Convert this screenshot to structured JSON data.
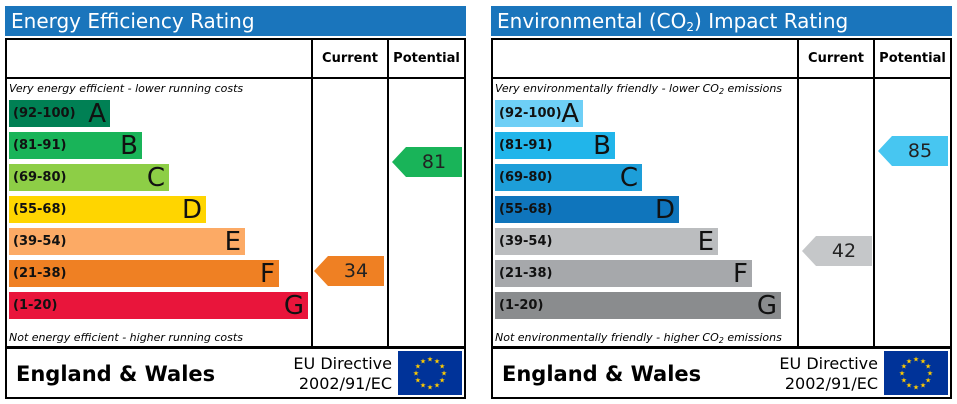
{
  "panels": [
    {
      "title": "Energy Efficiency Rating",
      "col_current": "Current",
      "col_potential": "Potential",
      "top_note": "Very energy efficient - lower running costs",
      "bottom_note": "Not energy efficient - higher running costs",
      "bands": [
        {
          "range": "(92-100)",
          "letter": "A",
          "color": "#008054"
        },
        {
          "range": "(81-91)",
          "letter": "B",
          "color": "#19b459"
        },
        {
          "range": "(69-80)",
          "letter": "C",
          "color": "#8dce46"
        },
        {
          "range": "(55-68)",
          "letter": "D",
          "color": "#ffd500"
        },
        {
          "range": "(39-54)",
          "letter": "E",
          "color": "#fcaa65"
        },
        {
          "range": "(21-38)",
          "letter": "F",
          "color": "#ef8023"
        },
        {
          "range": "(1-20)",
          "letter": "G",
          "color": "#e9153b"
        }
      ],
      "current": {
        "value": "34",
        "color": "#ef8023"
      },
      "potential": {
        "value": "81",
        "color": "#19b459"
      },
      "footer_country": "England & Wales",
      "footer_directive_1": "EU Directive",
      "footer_directive_2": "2002/91/EC"
    },
    {
      "title_prefix": "Environmental (CO",
      "title_sub": "2",
      "title_suffix": ") Impact Rating",
      "col_current": "Current",
      "col_potential": "Potential",
      "top_note_prefix": "Very environmentally friendly - lower CO",
      "top_note_sub": "2",
      "top_note_suffix": " emissions",
      "bottom_note_prefix": "Not environmentally friendly - higher CO",
      "bottom_note_sub": "2",
      "bottom_note_suffix": " emissions",
      "bands": [
        {
          "range": "(92-100)",
          "letter": "A",
          "color": "#6ecff6"
        },
        {
          "range": "(81-91)",
          "letter": "B",
          "color": "#21b5ea"
        },
        {
          "range": "(69-80)",
          "letter": "C",
          "color": "#1d9ed9"
        },
        {
          "range": "(55-68)",
          "letter": "D",
          "color": "#0f75bc"
        },
        {
          "range": "(39-54)",
          "letter": "E",
          "color": "#bbbdbf"
        },
        {
          "range": "(21-38)",
          "letter": "F",
          "color": "#a6a8ab"
        },
        {
          "range": "(1-20)",
          "letter": "G",
          "color": "#8a8c8e"
        }
      ],
      "current": {
        "value": "42",
        "color": "#c5c7c9"
      },
      "potential": {
        "value": "85",
        "color": "#47c6f1"
      },
      "footer_country": "England & Wales",
      "footer_directive_1": "EU Directive",
      "footer_directive_2": "2002/91/EC"
    }
  ]
}
